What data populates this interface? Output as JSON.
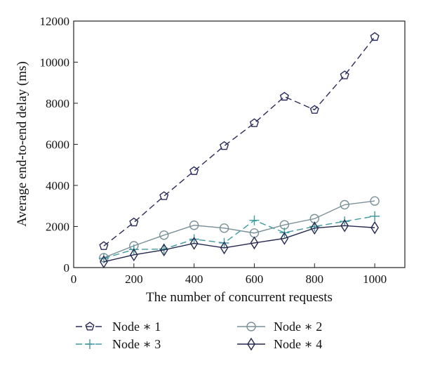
{
  "chart_data": {
    "type": "line",
    "xlabel": "The number of concurrent requests",
    "ylabel": "Average end-to-end delay (ms)",
    "xlim": [
      0,
      1100
    ],
    "ylim": [
      0,
      12000
    ],
    "x_ticks": [
      0,
      200,
      400,
      600,
      800,
      1000
    ],
    "y_ticks": [
      0,
      2000,
      4000,
      6000,
      8000,
      10000,
      12000
    ],
    "grid": false,
    "legend_position": "bottom",
    "x": [
      100,
      200,
      300,
      400,
      500,
      600,
      700,
      800,
      900,
      1000
    ],
    "series": [
      {
        "name": "Node ∗ 1",
        "marker": "pentagon",
        "line_style": "dashed",
        "color": "#2a2c5a",
        "values": [
          1050,
          2200,
          3480,
          4700,
          5920,
          7030,
          8320,
          7680,
          9360,
          11230
        ]
      },
      {
        "name": "Node ∗ 2",
        "marker": "circle",
        "line_style": "solid",
        "color": "#7a8f98",
        "values": [
          480,
          1060,
          1580,
          2060,
          1920,
          1680,
          2080,
          2380,
          3060,
          3240
        ]
      },
      {
        "name": "Node ∗ 3",
        "marker": "plus",
        "line_style": "dashed",
        "color": "#3f9a9e",
        "values": [
          450,
          880,
          900,
          1380,
          1200,
          2300,
          1700,
          2000,
          2250,
          2500
        ]
      },
      {
        "name": "Node ∗ 4",
        "marker": "diamond",
        "line_style": "solid",
        "color": "#25274f",
        "values": [
          280,
          620,
          860,
          1180,
          960,
          1200,
          1420,
          1920,
          2040,
          1940
        ]
      }
    ]
  }
}
